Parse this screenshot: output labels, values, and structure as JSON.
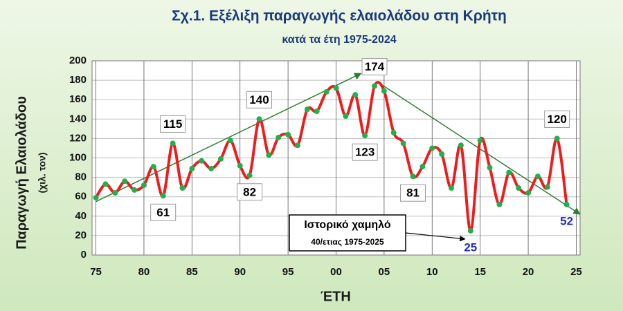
{
  "chart_data": {
    "type": "line",
    "title": "Σχ.1. Εξέλιξη παραγωγής ελαιολάδου στη Κρήτη",
    "subtitle": "κατά τα έτη 1975-2024",
    "y_label": "Παραγωγή Ελαιολάδου",
    "y_unit_label": "(χιλ. τον)",
    "x_label": "ΈΤΗ",
    "x": [
      1975,
      1976,
      1977,
      1978,
      1979,
      1980,
      1981,
      1982,
      1983,
      1984,
      1985,
      1986,
      1987,
      1988,
      1989,
      1990,
      1991,
      1992,
      1993,
      1994,
      1995,
      1996,
      1997,
      1998,
      1999,
      2000,
      2001,
      2002,
      2003,
      2004,
      2005,
      2006,
      2007,
      2008,
      2009,
      2010,
      2011,
      2012,
      2013,
      2014,
      2015,
      2016,
      2017,
      2018,
      2019,
      2020,
      2021,
      2022,
      2023,
      2024
    ],
    "series": [
      {
        "color": "#ee1c1c",
        "marker_color": "#22b04c",
        "values": [
          59,
          73,
          64,
          76,
          67,
          72,
          91,
          61,
          115,
          69,
          89,
          97,
          89,
          99,
          118,
          92,
          82,
          140,
          103,
          121,
          124,
          113,
          150,
          148,
          168,
          172,
          143,
          165,
          123,
          174,
          169,
          126,
          115,
          81,
          91,
          110,
          104,
          69,
          113,
          25,
          118,
          90,
          52,
          85,
          69,
          64,
          81,
          70,
          120,
          52
        ],
        "value_labels": [
          null,
          null,
          null,
          null,
          null,
          null,
          null,
          "61",
          "115",
          null,
          null,
          null,
          null,
          null,
          null,
          null,
          "82",
          "140",
          null,
          null,
          null,
          null,
          null,
          null,
          null,
          null,
          null,
          null,
          "123",
          "174",
          null,
          null,
          null,
          "81",
          null,
          null,
          null,
          null,
          null,
          "25",
          null,
          null,
          null,
          null,
          null,
          null,
          null,
          null,
          "120",
          "52"
        ],
        "value_label_colors": [
          null,
          null,
          null,
          null,
          null,
          null,
          null,
          "#000000",
          "#000000",
          null,
          null,
          null,
          null,
          null,
          null,
          null,
          "#000000",
          "#000000",
          null,
          null,
          null,
          null,
          null,
          null,
          null,
          null,
          null,
          null,
          "#000000",
          "#000000",
          null,
          null,
          null,
          "#000000",
          null,
          null,
          null,
          null,
          null,
          "#1f2fbf",
          null,
          null,
          null,
          null,
          null,
          null,
          null,
          null,
          "#000000",
          "#1f2fbf"
        ]
      }
    ],
    "trend_lines": [
      {
        "x": [
          1975,
          2002.6
        ],
        "y": [
          55,
          187
        ],
        "color": "#2e7d32"
      },
      {
        "x": [
          2004.5,
          2025.4
        ],
        "y": [
          177,
          42
        ],
        "color": "#2e7d32"
      }
    ],
    "annotation": {
      "title": "Ιστορικό χαμηλό",
      "text": "40/ετιας 1975-2025",
      "x": 2014,
      "y": 25
    },
    "xlim": [
      1974.6,
      2025.4
    ],
    "xticks": [
      {
        "value": 1975,
        "label": "75"
      },
      {
        "value": 1980,
        "label": "80"
      },
      {
        "value": 1985,
        "label": "85"
      },
      {
        "value": 1990,
        "label": "90"
      },
      {
        "value": 1995,
        "label": "95"
      },
      {
        "value": 2000,
        "label": "00"
      },
      {
        "value": 2005,
        "label": "05"
      },
      {
        "value": 2010,
        "label": "10"
      },
      {
        "value": 2015,
        "label": "15"
      },
      {
        "value": 2020,
        "label": "20"
      },
      {
        "value": 2025,
        "label": "25"
      }
    ],
    "ylim": [
      0,
      200
    ],
    "yticks": [
      0,
      20,
      40,
      60,
      80,
      100,
      120,
      140,
      160,
      180,
      200
    ],
    "grid": true
  }
}
